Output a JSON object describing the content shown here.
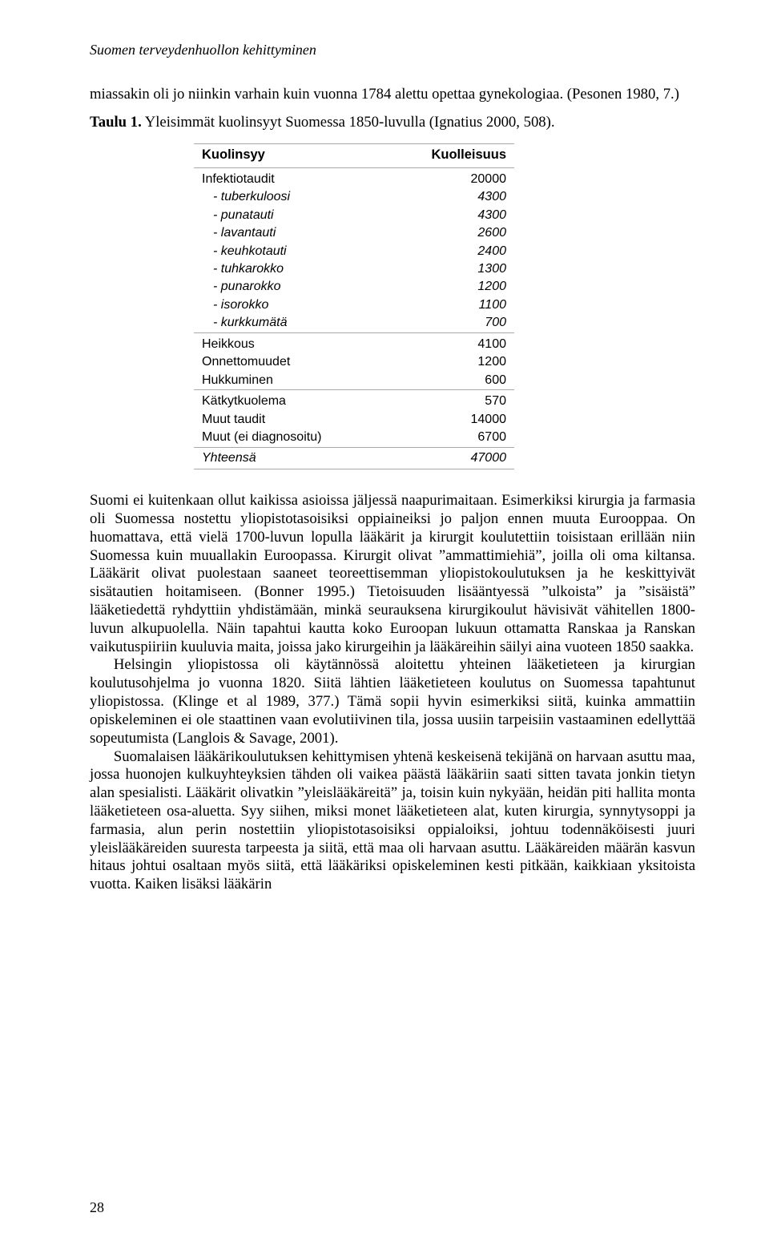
{
  "runningHead": "Suomen terveydenhuollon kehittyminen",
  "intro": {
    "p1": "miassakin oli jo niinkin varhain kuin vuonna 1784 alettu opettaa gynekologiaa. (Pesonen 1980, 7.)",
    "tauluLabel": "Taulu 1.",
    "tauluRest": " Yleisimmät kuolinsyyt Suomessa 1850-luvulla (Ignatius 2000, 508)."
  },
  "table": {
    "header": {
      "c1": "Kuolinsyy",
      "c2": "Kuolleisuus"
    },
    "groups": [
      {
        "label": "Infektiotaudit",
        "value": "20000",
        "sub": [
          {
            "label": "- tuberkuloosi",
            "value": "4300"
          },
          {
            "label": "- punatauti",
            "value": "4300"
          },
          {
            "label": "- lavantauti",
            "value": "2600"
          },
          {
            "label": "- keuhkotauti",
            "value": "2400"
          },
          {
            "label": "- tuhkarokko",
            "value": "1300"
          },
          {
            "label": "- punarokko",
            "value": "1200"
          },
          {
            "label": "- isorokko",
            "value": "1100"
          },
          {
            "label": "- kurkkumätä",
            "value": "700"
          }
        ]
      },
      {
        "label": "Heikkous",
        "value": "4100"
      },
      {
        "label": "Onnettomuudet",
        "value": "1200"
      },
      {
        "label": "Hukkuminen",
        "value": "600"
      },
      {
        "label": "Kätkytkuolema",
        "value": "570",
        "sep": true
      },
      {
        "label": "Muut taudit",
        "value": "14000"
      },
      {
        "label": "Muut (ei diagnosoitu)",
        "value": "6700"
      }
    ],
    "total": {
      "label": "Yhteensä",
      "value": "47000"
    }
  },
  "body": {
    "p2": "Suomi ei kuitenkaan ollut kaikissa asioissa jäljessä naapurimaitaan. Esimerkiksi kirurgia ja farmasia oli Suomessa nostettu yliopistotasoisiksi oppiaineiksi jo paljon ennen muuta Eurooppaa. On huomattava, että vielä 1700-luvun lopulla lääkärit ja kirurgit koulutettiin toisistaan erillään niin Suomessa kuin muuallakin Euroopassa. Kirurgit olivat ”ammattimiehiä”, joilla oli oma kiltansa. Lääkärit olivat puolestaan saaneet teoreettisemman yliopistokoulutuksen ja he keskittyivät sisätautien hoitamiseen. (Bonner 1995.) Tietoisuuden lisääntyessä ”ulkoista” ja ”sisäistä” lääketiedettä ryhdyttiin yhdistämään, minkä seurauksena kirurgikoulut hävisivät vähitellen 1800-luvun alkupuolella. Näin tapahtui kautta koko Euroopan lukuun ottamatta Ranskaa ja Ranskan vaikutuspiiriin kuuluvia maita, joissa jako kirurgeihin ja lääkäreihin säilyi aina vuoteen 1850 saakka.",
    "p3": "Helsingin yliopistossa oli käytännössä aloitettu yhteinen lääketieteen ja kirurgian koulutusohjelma jo vuonna 1820. Siitä lähtien lääketieteen koulutus on Suomessa tapahtunut yliopistossa. (Klinge et al 1989, 377.) Tämä sopii hyvin esimerkiksi siitä, kuinka ammattiin opiskeleminen ei ole staattinen vaan evolutiivinen tila, jossa uusiin tarpeisiin vastaaminen edellyttää sopeutumista (Langlois & Savage, 2001).",
    "p4": "Suomalaisen lääkärikoulutuksen kehittymisen yhtenä keskeisenä tekijänä on harvaan asuttu maa, jossa huonojen kulkuyhteyksien tähden oli vaikea päästä lääkäriin saati sitten tavata jonkin tietyn alan spesialisti. Lääkärit olivatkin ”yleislääkäreitä” ja, toisin kuin nykyään, heidän piti hallita monta lääketieteen osa-aluetta. Syy siihen, miksi monet lääketieteen alat, kuten kirurgia, synnytysoppi ja farmasia, alun perin nostettiin yliopistotasoisiksi oppialoiksi, johtuu todennäköisesti juuri yleislääkäreiden suuresta tarpeesta ja siitä, että maa oli harvaan asuttu. Lääkäreiden määrän kasvun hitaus johtui osaltaan myös siitä, että lääkäriksi opiskeleminen kesti pitkään, kaikkiaan yksitoista vuotta. Kaiken lisäksi lääkärin"
  },
  "pageNumber": "28"
}
